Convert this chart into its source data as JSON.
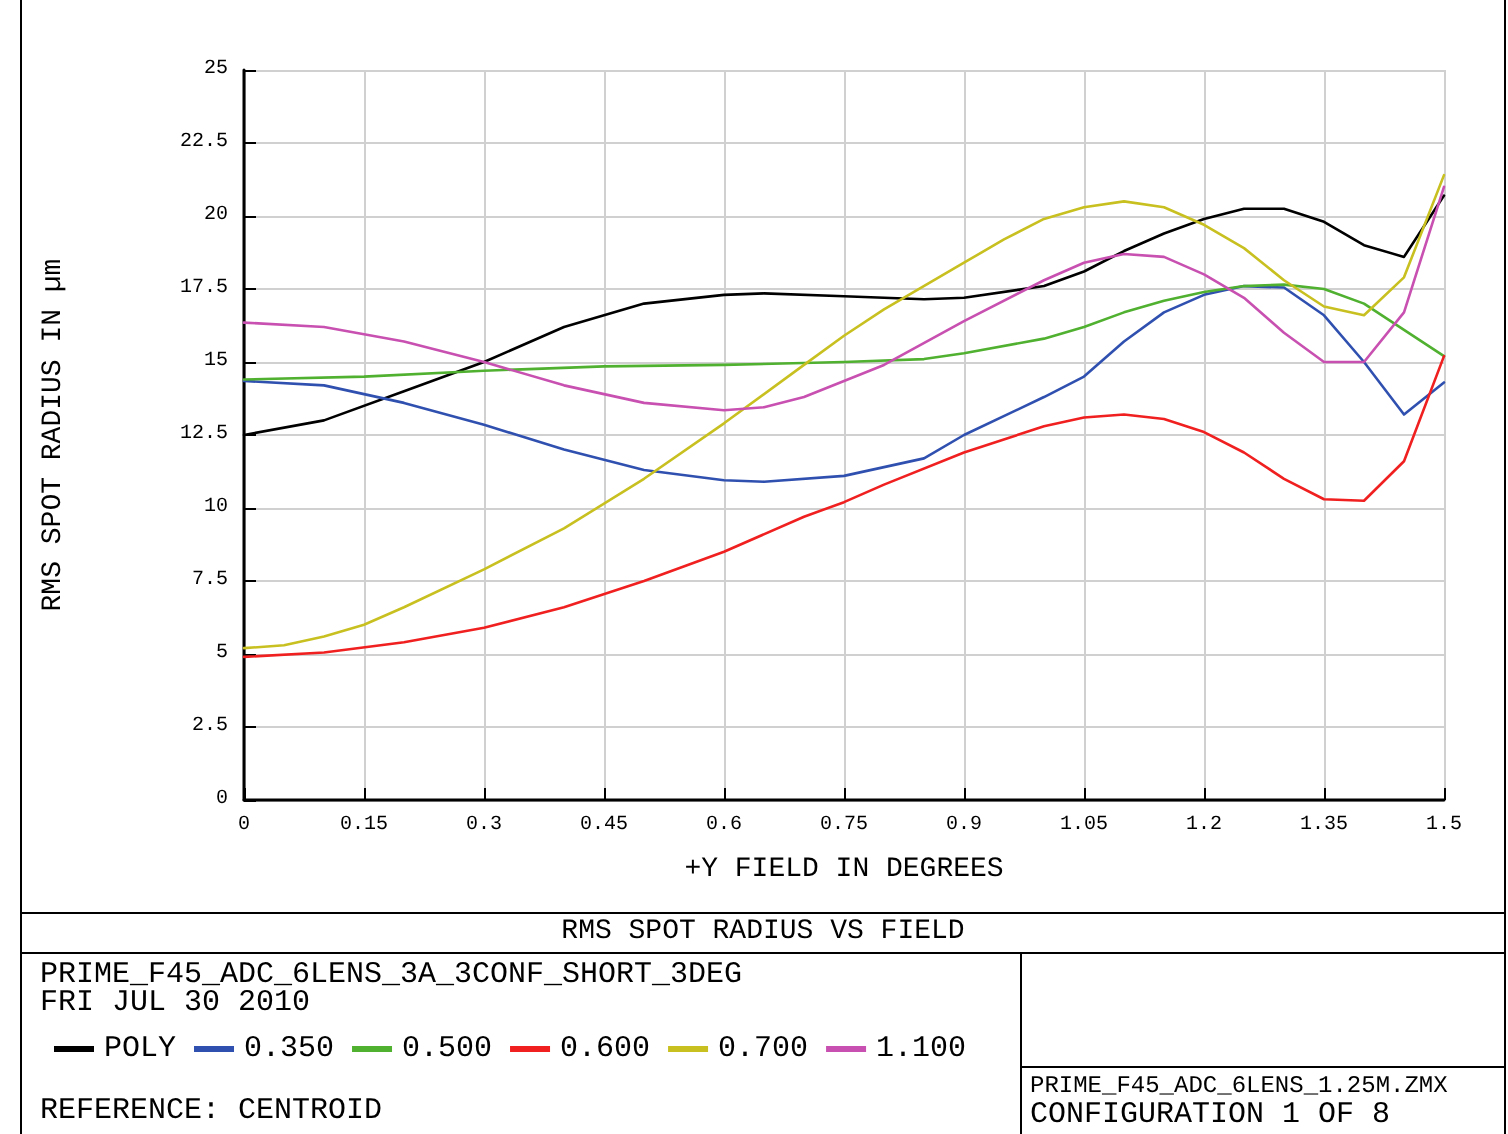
{
  "chart_data": {
    "type": "line",
    "title": "RMS SPOT RADIUS VS FIELD",
    "xlabel": "+Y FIELD IN DEGREES",
    "ylabel": "RMS SPOT RADIUS IN µm",
    "xlim": [
      0,
      1.5
    ],
    "xticks": [
      0,
      0.15,
      0.3,
      0.45,
      0.6,
      0.75,
      0.9,
      1.05,
      1.2,
      1.35,
      1.5
    ],
    "ylim": [
      0,
      25
    ],
    "yticks": [
      0,
      2.5,
      5,
      7.5,
      10,
      12.5,
      15,
      17.5,
      20,
      22.5,
      25
    ],
    "grid": true,
    "legend": "bottom left",
    "marker": "none",
    "line_style": "solid",
    "annotations": [
      "PRIME_F45_ADC_6LENS_3A_3CONF_SHORT_3DEG",
      "FRI JUL 30 2010",
      "REFERENCE: CENTROID",
      "PRIME_F45_ADC_6LENS_1.25M.ZMX",
      "CONFIGURATION 1 OF 8"
    ],
    "series": [
      {
        "name": "POLY",
        "color": "#000000",
        "x": [
          0,
          0.1,
          0.2,
          0.3,
          0.4,
          0.5,
          0.6,
          0.65,
          0.75,
          0.85,
          0.9,
          1.0,
          1.05,
          1.1,
          1.15,
          1.2,
          1.25,
          1.3,
          1.35,
          1.4,
          1.45,
          1.5
        ],
        "values": [
          12.5,
          13.0,
          14.0,
          15.0,
          16.2,
          17.0,
          17.3,
          17.35,
          17.25,
          17.15,
          17.2,
          17.6,
          18.1,
          18.8,
          19.4,
          19.9,
          20.25,
          20.25,
          19.8,
          19.0,
          18.6,
          20.7
        ]
      },
      {
        "name": "0.350",
        "color": "#3050b0",
        "x": [
          0,
          0.1,
          0.2,
          0.3,
          0.4,
          0.5,
          0.6,
          0.65,
          0.75,
          0.85,
          0.9,
          1.0,
          1.05,
          1.1,
          1.15,
          1.2,
          1.25,
          1.3,
          1.35,
          1.4,
          1.45,
          1.5
        ],
        "values": [
          14.35,
          14.2,
          13.6,
          12.85,
          12.0,
          11.3,
          10.95,
          10.9,
          11.1,
          11.7,
          12.5,
          13.8,
          14.5,
          15.7,
          16.7,
          17.3,
          17.6,
          17.55,
          16.6,
          15.0,
          13.2,
          14.3
        ]
      },
      {
        "name": "0.500",
        "color": "#50b030",
        "x": [
          0,
          0.15,
          0.3,
          0.45,
          0.6,
          0.75,
          0.85,
          0.9,
          1.0,
          1.05,
          1.1,
          1.15,
          1.2,
          1.25,
          1.3,
          1.35,
          1.4,
          1.45,
          1.5
        ],
        "values": [
          14.4,
          14.5,
          14.7,
          14.85,
          14.9,
          15.0,
          15.1,
          15.3,
          15.8,
          16.2,
          16.7,
          17.1,
          17.4,
          17.6,
          17.65,
          17.5,
          17.0,
          16.1,
          15.2
        ]
      },
      {
        "name": "0.600",
        "color": "#f02020",
        "x": [
          0,
          0.1,
          0.2,
          0.3,
          0.4,
          0.5,
          0.6,
          0.7,
          0.75,
          0.8,
          0.9,
          1.0,
          1.05,
          1.1,
          1.15,
          1.2,
          1.25,
          1.3,
          1.35,
          1.4,
          1.45,
          1.5
        ],
        "values": [
          4.9,
          5.05,
          5.4,
          5.9,
          6.6,
          7.5,
          8.5,
          9.7,
          10.2,
          10.8,
          11.9,
          12.8,
          13.1,
          13.2,
          13.05,
          12.6,
          11.9,
          11.0,
          10.3,
          10.25,
          11.6,
          15.2
        ]
      },
      {
        "name": "0.700",
        "color": "#c8c020",
        "x": [
          0,
          0.05,
          0.1,
          0.15,
          0.2,
          0.3,
          0.4,
          0.5,
          0.6,
          0.7,
          0.75,
          0.8,
          0.9,
          0.95,
          1.0,
          1.05,
          1.1,
          1.15,
          1.2,
          1.25,
          1.3,
          1.35,
          1.4,
          1.45,
          1.5
        ],
        "values": [
          5.2,
          5.3,
          5.6,
          6.0,
          6.6,
          7.9,
          9.3,
          11.0,
          12.9,
          14.9,
          15.9,
          16.8,
          18.4,
          19.2,
          19.9,
          20.3,
          20.5,
          20.3,
          19.7,
          18.9,
          17.8,
          16.9,
          16.6,
          17.9,
          21.4
        ]
      },
      {
        "name": "1.100",
        "color": "#c850b0",
        "x": [
          0,
          0.1,
          0.2,
          0.3,
          0.4,
          0.5,
          0.6,
          0.65,
          0.7,
          0.8,
          0.9,
          1.0,
          1.05,
          1.1,
          1.15,
          1.2,
          1.25,
          1.3,
          1.35,
          1.4,
          1.45,
          1.5
        ],
        "values": [
          16.35,
          16.2,
          15.7,
          15.0,
          14.2,
          13.6,
          13.35,
          13.45,
          13.8,
          14.9,
          16.4,
          17.8,
          18.4,
          18.7,
          18.6,
          18.0,
          17.2,
          16.0,
          15.0,
          15.0,
          16.7,
          21.0
        ]
      }
    ]
  }
}
